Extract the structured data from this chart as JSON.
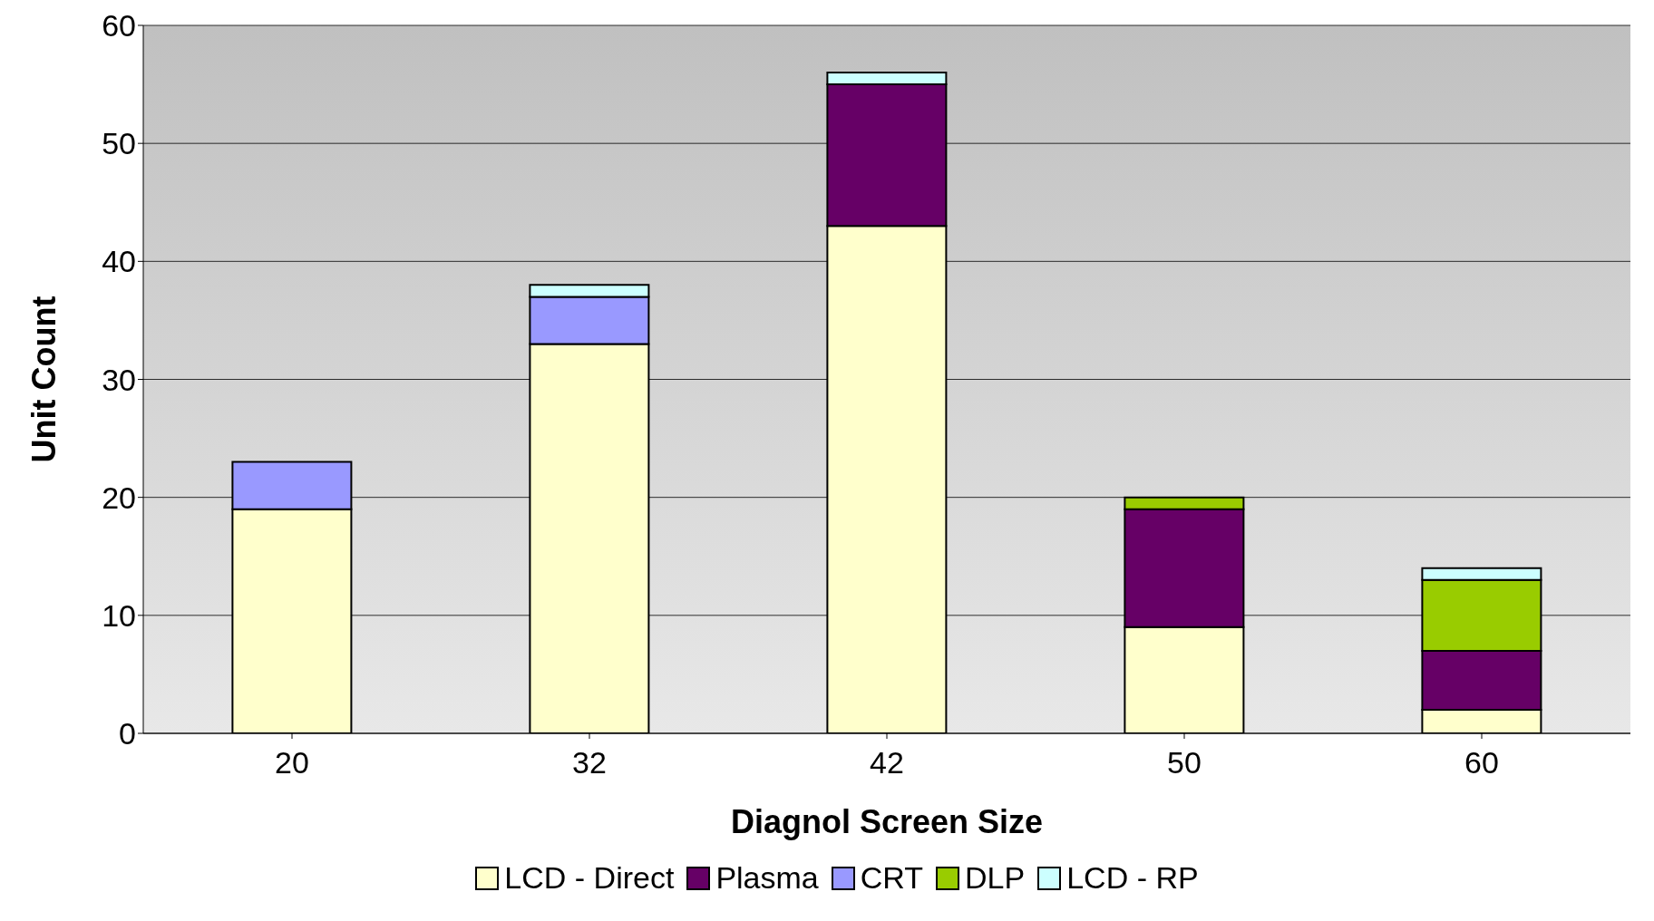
{
  "chart_data": {
    "type": "bar",
    "stacked": true,
    "xlabel": "Diagnol Screen Size",
    "ylabel": "Unit Count",
    "categories": [
      "20",
      "32",
      "42",
      "50",
      "60"
    ],
    "series": [
      {
        "name": "LCD - Direct",
        "color": "#ffffcc",
        "values": [
          19,
          33,
          43,
          9,
          2
        ]
      },
      {
        "name": "Plasma",
        "color": "#660066",
        "values": [
          0,
          0,
          12,
          10,
          5
        ]
      },
      {
        "name": "CRT",
        "color": "#9999ff",
        "values": [
          4,
          4,
          0,
          0,
          0
        ]
      },
      {
        "name": "DLP",
        "color": "#99cc00",
        "values": [
          0,
          0,
          0,
          1,
          6
        ]
      },
      {
        "name": "LCD - RP",
        "color": "#ccffff",
        "values": [
          0,
          1,
          1,
          0,
          1
        ]
      }
    ],
    "ylim": [
      0,
      60
    ],
    "yticks": [
      0,
      10,
      20,
      30,
      40,
      50,
      60
    ],
    "grid": "y",
    "legend": "bottom"
  }
}
